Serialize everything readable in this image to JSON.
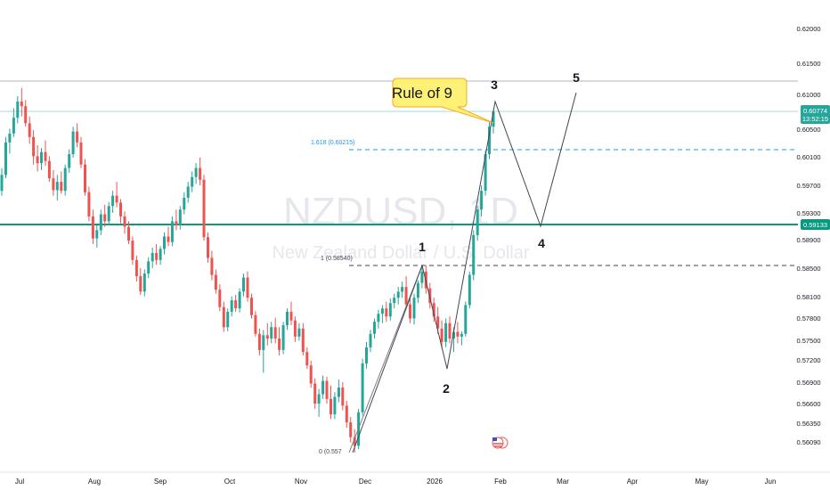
{
  "chart_data": {
    "type": "candlestick",
    "symbol": "NZDUSD",
    "interval": "1D",
    "watermark_title": "NZDUSD, 1D",
    "watermark_subtitle": "New Zealand Dollar / U.S. Dollar",
    "x_labels": [
      "Jul",
      "Aug",
      "Sep",
      "Oct",
      "Nov",
      "Dec",
      "2026",
      "Feb",
      "Mar",
      "Apr",
      "May",
      "Jun"
    ],
    "y_ticks": [
      "0.62000",
      "0.61500",
      "0.61000",
      "0.60500",
      "0.60100",
      "0.59700",
      "0.59300",
      "0.58900",
      "0.58500",
      "0.58100",
      "0.57800",
      "0.57500",
      "0.57200",
      "0.56900",
      "0.56600",
      "0.56350",
      "0.56090"
    ],
    "price_label": {
      "value": "0.60774",
      "countdown": "13:52:15",
      "color": "#26a69a"
    },
    "level_label": {
      "value": "0.59133",
      "color": "#089981"
    },
    "fib_levels": [
      {
        "label": "1.618 (0.60215)",
        "value": 0.60215,
        "color": "#2196f3"
      },
      {
        "label": "1 (0.58540)",
        "value": 0.5854,
        "color": "#434651"
      },
      {
        "label": "0 (0.557",
        "value": 0.5575,
        "color": "#434651"
      }
    ],
    "wave_labels": [
      "1",
      "2",
      "3",
      "4",
      "5"
    ],
    "callout": "Rule of 9",
    "colors": {
      "up": "#26a69a",
      "down": "#ef5350",
      "level": "#089981",
      "fib_blue": "#2196f3",
      "callout_fill": "#fff176",
      "callout_border": "#f9a825"
    },
    "candles_ohlc": [
      [
        0.5962,
        0.5995,
        0.5955,
        0.5985
      ],
      [
        0.5985,
        0.604,
        0.598,
        0.6032
      ],
      [
        0.6032,
        0.6052,
        0.6016,
        0.6045
      ],
      [
        0.6045,
        0.6082,
        0.604,
        0.6068
      ],
      [
        0.6068,
        0.61,
        0.606,
        0.6092
      ],
      [
        0.6092,
        0.6112,
        0.607,
        0.6085
      ],
      [
        0.6085,
        0.6094,
        0.6055,
        0.606
      ],
      [
        0.606,
        0.607,
        0.603,
        0.604
      ],
      [
        0.604,
        0.605,
        0.6,
        0.6012
      ],
      [
        0.6012,
        0.6028,
        0.599,
        0.6002
      ],
      [
        0.6002,
        0.6024,
        0.5992,
        0.6018
      ],
      [
        0.6018,
        0.6035,
        0.5998,
        0.6005
      ],
      [
        0.6005,
        0.6012,
        0.5975,
        0.598
      ],
      [
        0.598,
        0.5992,
        0.5955,
        0.5963
      ],
      [
        0.5963,
        0.5985,
        0.5948,
        0.5975
      ],
      [
        0.5975,
        0.599,
        0.5958,
        0.5962
      ],
      [
        0.5962,
        0.6,
        0.5955,
        0.5995
      ],
      [
        0.5995,
        0.6022,
        0.5988,
        0.6015
      ],
      [
        0.6015,
        0.6055,
        0.601,
        0.6048
      ],
      [
        0.6048,
        0.606,
        0.6025,
        0.6032
      ],
      [
        0.6032,
        0.604,
        0.5995,
        0.6
      ],
      [
        0.6,
        0.6008,
        0.5955,
        0.596
      ],
      [
        0.596,
        0.5968,
        0.5918,
        0.5925
      ],
      [
        0.5925,
        0.5935,
        0.5885,
        0.5893
      ],
      [
        0.5893,
        0.5912,
        0.588,
        0.5905
      ],
      [
        0.5905,
        0.5935,
        0.5898,
        0.5928
      ],
      [
        0.5928,
        0.5942,
        0.591,
        0.5918
      ],
      [
        0.5918,
        0.5946,
        0.5912,
        0.594
      ],
      [
        0.594,
        0.5962,
        0.593,
        0.5955
      ],
      [
        0.5955,
        0.5975,
        0.5938,
        0.5945
      ],
      [
        0.5945,
        0.595,
        0.5915,
        0.5925
      ],
      [
        0.5925,
        0.5932,
        0.59,
        0.591
      ],
      [
        0.591,
        0.5918,
        0.5885,
        0.589
      ],
      [
        0.589,
        0.5896,
        0.5855,
        0.5862
      ],
      [
        0.5862,
        0.5868,
        0.583,
        0.5838
      ],
      [
        0.5838,
        0.585,
        0.581,
        0.5815
      ],
      [
        0.5815,
        0.5848,
        0.5808,
        0.5842
      ],
      [
        0.5842,
        0.5866,
        0.5835,
        0.586
      ],
      [
        0.586,
        0.588,
        0.585,
        0.5872
      ],
      [
        0.5872,
        0.5885,
        0.5855,
        0.5862
      ],
      [
        0.5862,
        0.5882,
        0.5855,
        0.5878
      ],
      [
        0.5878,
        0.5902,
        0.587,
        0.5896
      ],
      [
        0.5896,
        0.591,
        0.5882,
        0.5888
      ],
      [
        0.5888,
        0.5925,
        0.5882,
        0.5918
      ],
      [
        0.5918,
        0.5935,
        0.5905,
        0.5912
      ],
      [
        0.5912,
        0.594,
        0.5906,
        0.5935
      ],
      [
        0.5935,
        0.596,
        0.5928,
        0.5952
      ],
      [
        0.5952,
        0.5975,
        0.5945,
        0.5968
      ],
      [
        0.5968,
        0.599,
        0.596,
        0.5982
      ],
      [
        0.5982,
        0.6002,
        0.5972,
        0.5995
      ],
      [
        0.5995,
        0.601,
        0.597,
        0.5978
      ],
      [
        0.5978,
        0.5985,
        0.589,
        0.5895
      ],
      [
        0.5895,
        0.5902,
        0.5858,
        0.5865
      ],
      [
        0.5865,
        0.5875,
        0.5832,
        0.584
      ],
      [
        0.584,
        0.5848,
        0.5812,
        0.5818
      ],
      [
        0.5818,
        0.5826,
        0.5786,
        0.5792
      ],
      [
        0.5792,
        0.58,
        0.5755,
        0.5762
      ],
      [
        0.5762,
        0.579,
        0.5756,
        0.5785
      ],
      [
        0.5785,
        0.5808,
        0.5778,
        0.5802
      ],
      [
        0.5802,
        0.581,
        0.5785,
        0.579
      ],
      [
        0.579,
        0.582,
        0.5784,
        0.5815
      ],
      [
        0.5815,
        0.5842,
        0.5808,
        0.5836
      ],
      [
        0.5836,
        0.5845,
        0.58,
        0.5806
      ],
      [
        0.5806,
        0.5812,
        0.5775,
        0.578
      ],
      [
        0.578,
        0.5786,
        0.5748,
        0.5752
      ],
      [
        0.5752,
        0.576,
        0.572,
        0.5728
      ],
      [
        0.5728,
        0.5758,
        0.5694,
        0.575
      ],
      [
        0.575,
        0.5768,
        0.5735,
        0.5745
      ],
      [
        0.5745,
        0.577,
        0.5738,
        0.5762
      ],
      [
        0.5762,
        0.5776,
        0.5738,
        0.5745
      ],
      [
        0.5745,
        0.5762,
        0.572,
        0.5728
      ],
      [
        0.5728,
        0.577,
        0.5722,
        0.5765
      ],
      [
        0.5765,
        0.579,
        0.5758,
        0.5785
      ],
      [
        0.5785,
        0.58,
        0.5765,
        0.5772
      ],
      [
        0.5772,
        0.5778,
        0.574,
        0.5748
      ],
      [
        0.5748,
        0.5768,
        0.5742,
        0.576
      ],
      [
        0.576,
        0.5768,
        0.572,
        0.5725
      ],
      [
        0.5725,
        0.5732,
        0.57,
        0.5705
      ],
      [
        0.5705,
        0.5712,
        0.5672,
        0.5678
      ],
      [
        0.5678,
        0.5686,
        0.564,
        0.5648
      ],
      [
        0.5648,
        0.567,
        0.5628,
        0.5662
      ],
      [
        0.5662,
        0.569,
        0.5655,
        0.5682
      ],
      [
        0.5682,
        0.5688,
        0.5648,
        0.5655
      ],
      [
        0.5655,
        0.5675,
        0.5625,
        0.5632
      ],
      [
        0.5632,
        0.5665,
        0.5625,
        0.5658
      ],
      [
        0.5658,
        0.5684,
        0.565,
        0.5672
      ],
      [
        0.5672,
        0.568,
        0.5638,
        0.5645
      ],
      [
        0.5645,
        0.5652,
        0.5612,
        0.562
      ],
      [
        0.562,
        0.5628,
        0.559,
        0.5598
      ],
      [
        0.5598,
        0.561,
        0.5575,
        0.5585
      ],
      [
        0.5585,
        0.564,
        0.558,
        0.5635
      ],
      [
        0.5635,
        0.5715,
        0.563,
        0.5708
      ],
      [
        0.5708,
        0.574,
        0.57,
        0.5732
      ],
      [
        0.5732,
        0.5758,
        0.5725,
        0.5752
      ],
      [
        0.5752,
        0.5775,
        0.5745,
        0.577
      ],
      [
        0.577,
        0.5788,
        0.576,
        0.5782
      ],
      [
        0.5782,
        0.5795,
        0.5768,
        0.579
      ],
      [
        0.579,
        0.58,
        0.577,
        0.5778
      ],
      [
        0.5778,
        0.5805,
        0.5772,
        0.5798
      ],
      [
        0.5798,
        0.5812,
        0.579,
        0.5806
      ],
      [
        0.5806,
        0.5822,
        0.5796,
        0.5815
      ],
      [
        0.5815,
        0.583,
        0.5806,
        0.5822
      ],
      [
        0.5822,
        0.5838,
        0.579,
        0.5796
      ],
      [
        0.5796,
        0.5805,
        0.5768,
        0.5775
      ],
      [
        0.5775,
        0.5812,
        0.5766,
        0.5806
      ],
      [
        0.5806,
        0.5832,
        0.5798,
        0.5828
      ],
      [
        0.5828,
        0.5852,
        0.582,
        0.5845
      ],
      [
        0.5845,
        0.5854,
        0.5812,
        0.582
      ],
      [
        0.582,
        0.5828,
        0.579,
        0.5798
      ],
      [
        0.5798,
        0.5806,
        0.577,
        0.5778
      ],
      [
        0.5778,
        0.5792,
        0.5752,
        0.576
      ],
      [
        0.576,
        0.5772,
        0.573,
        0.574
      ],
      [
        0.574,
        0.5775,
        0.5732,
        0.5768
      ],
      [
        0.5768,
        0.5778,
        0.5738,
        0.5745
      ],
      [
        0.5745,
        0.5762,
        0.5725,
        0.5755
      ],
      [
        0.5755,
        0.577,
        0.5738,
        0.5748
      ],
      [
        0.5748,
        0.5756,
        0.5735,
        0.5752
      ],
      [
        0.5752,
        0.58,
        0.5748,
        0.5795
      ],
      [
        0.5795,
        0.5845,
        0.579,
        0.584
      ],
      [
        0.584,
        0.5905,
        0.5832,
        0.5898
      ],
      [
        0.5898,
        0.594,
        0.589,
        0.5935
      ],
      [
        0.5935,
        0.597,
        0.5925,
        0.5962
      ],
      [
        0.5962,
        0.602,
        0.5955,
        0.6015
      ],
      [
        0.6015,
        0.6062,
        0.6008,
        0.6055
      ],
      [
        0.6055,
        0.608,
        0.6045,
        0.6077
      ]
    ]
  }
}
